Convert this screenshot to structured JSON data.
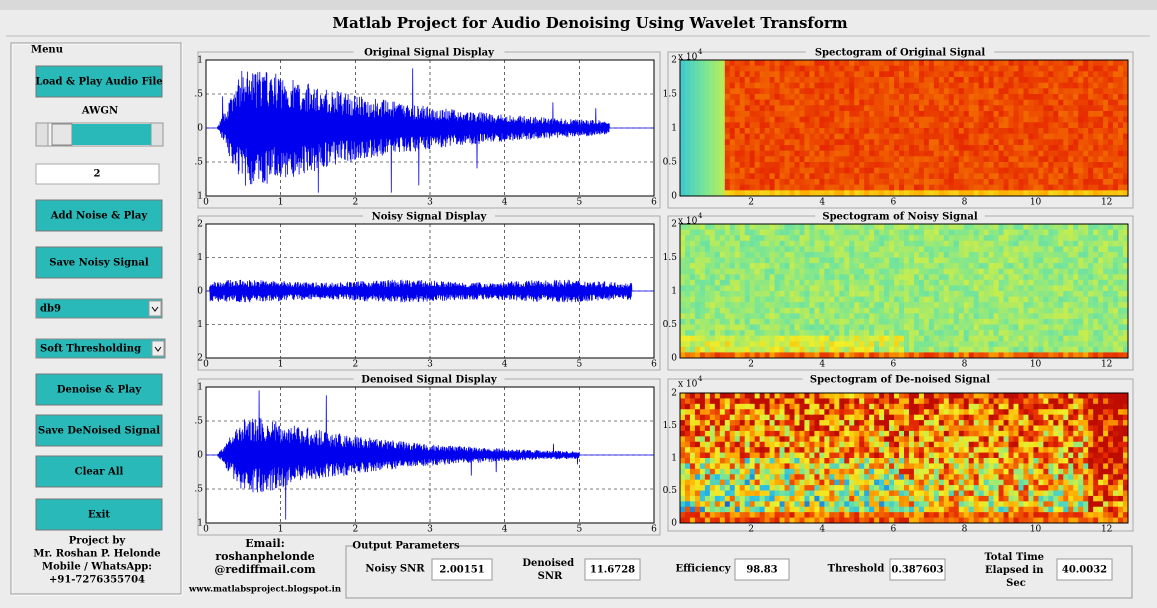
{
  "window_title": "Matlab Project for Audio Denoising Using Wavelet Transform",
  "menu": {
    "title": "Menu",
    "load_button": "Load & Play Audio File",
    "awgn_label": "AWGN",
    "awgn_value": "2",
    "add_noise_button": "Add Noise & Play",
    "save_noisy_button": "Save Noisy Signal",
    "wavelet": "db9",
    "threshold_mode": "Soft Thresholding",
    "denoise_button": "Denoise & Play",
    "save_denoised_button": "Save DeNoised Signal",
    "clear_button": "Clear All",
    "exit_button": "Exit",
    "credits": [
      "Project by",
      "Mr. Roshan P.  Helonde",
      "Mobile / WhatsApp:",
      "+91-7276355704"
    ]
  },
  "contact": [
    "Email:",
    "roshanphelonde",
    "@rediffmail.com",
    "www.matlabsproject.blogspot.in"
  ],
  "signal_panels": [
    {
      "title": "Original Signal Display",
      "yticks": [
        "1",
        ".5",
        "0",
        ".5",
        "1"
      ],
      "xticks": [
        "0",
        "1",
        "2",
        "3",
        "4",
        "5",
        "6"
      ]
    },
    {
      "title": "Noisy Signal Display",
      "yticks": [
        "2",
        "1",
        "0",
        "1",
        "2"
      ],
      "xticks": [
        "0",
        "1",
        "2",
        "3",
        "4",
        "5",
        "6"
      ]
    },
    {
      "title": "Denoised Signal Display",
      "yticks": [
        "1",
        ".5",
        "0",
        ".5",
        "1"
      ],
      "xticks": [
        "0",
        "1",
        "2",
        "3",
        "4",
        "5",
        "6"
      ]
    }
  ],
  "spectrogram_panels": [
    {
      "title": "Spectogram of Original Signal",
      "exponent_base": "x 10",
      "exponent": "4",
      "yticks": [
        "2",
        "1.5",
        "1",
        "0.5",
        "0"
      ],
      "xticks": [
        "2",
        "4",
        "6",
        "8",
        "10",
        "12"
      ]
    },
    {
      "title": "Spectogram of Noisy Signal",
      "exponent_base": "x 10",
      "exponent": "4",
      "yticks": [
        "2",
        "1.5",
        "1",
        "0.5",
        "0"
      ],
      "xticks": [
        "2",
        "4",
        "6",
        "8",
        "10",
        "12"
      ]
    },
    {
      "title": "Spectogram of De-noised Signal",
      "exponent_base": "x 10",
      "exponent": "4",
      "yticks": [
        "2",
        "1.5",
        "1",
        "0.5",
        "0"
      ],
      "xticks": [
        "2",
        "4",
        "6",
        "8",
        "10",
        "12"
      ]
    }
  ],
  "output": {
    "title": "Output Parameters",
    "fields": [
      {
        "label": "Noisy SNR",
        "value": "2.00151"
      },
      {
        "label": "Denoised SNR",
        "value": "11.6728"
      },
      {
        "label": "Efficiency",
        "value": "98.83"
      },
      {
        "label": "Threshold",
        "value": "0.387603"
      },
      {
        "label": "Total Time Elapsed in Sec",
        "value": "40.0032"
      }
    ]
  }
}
